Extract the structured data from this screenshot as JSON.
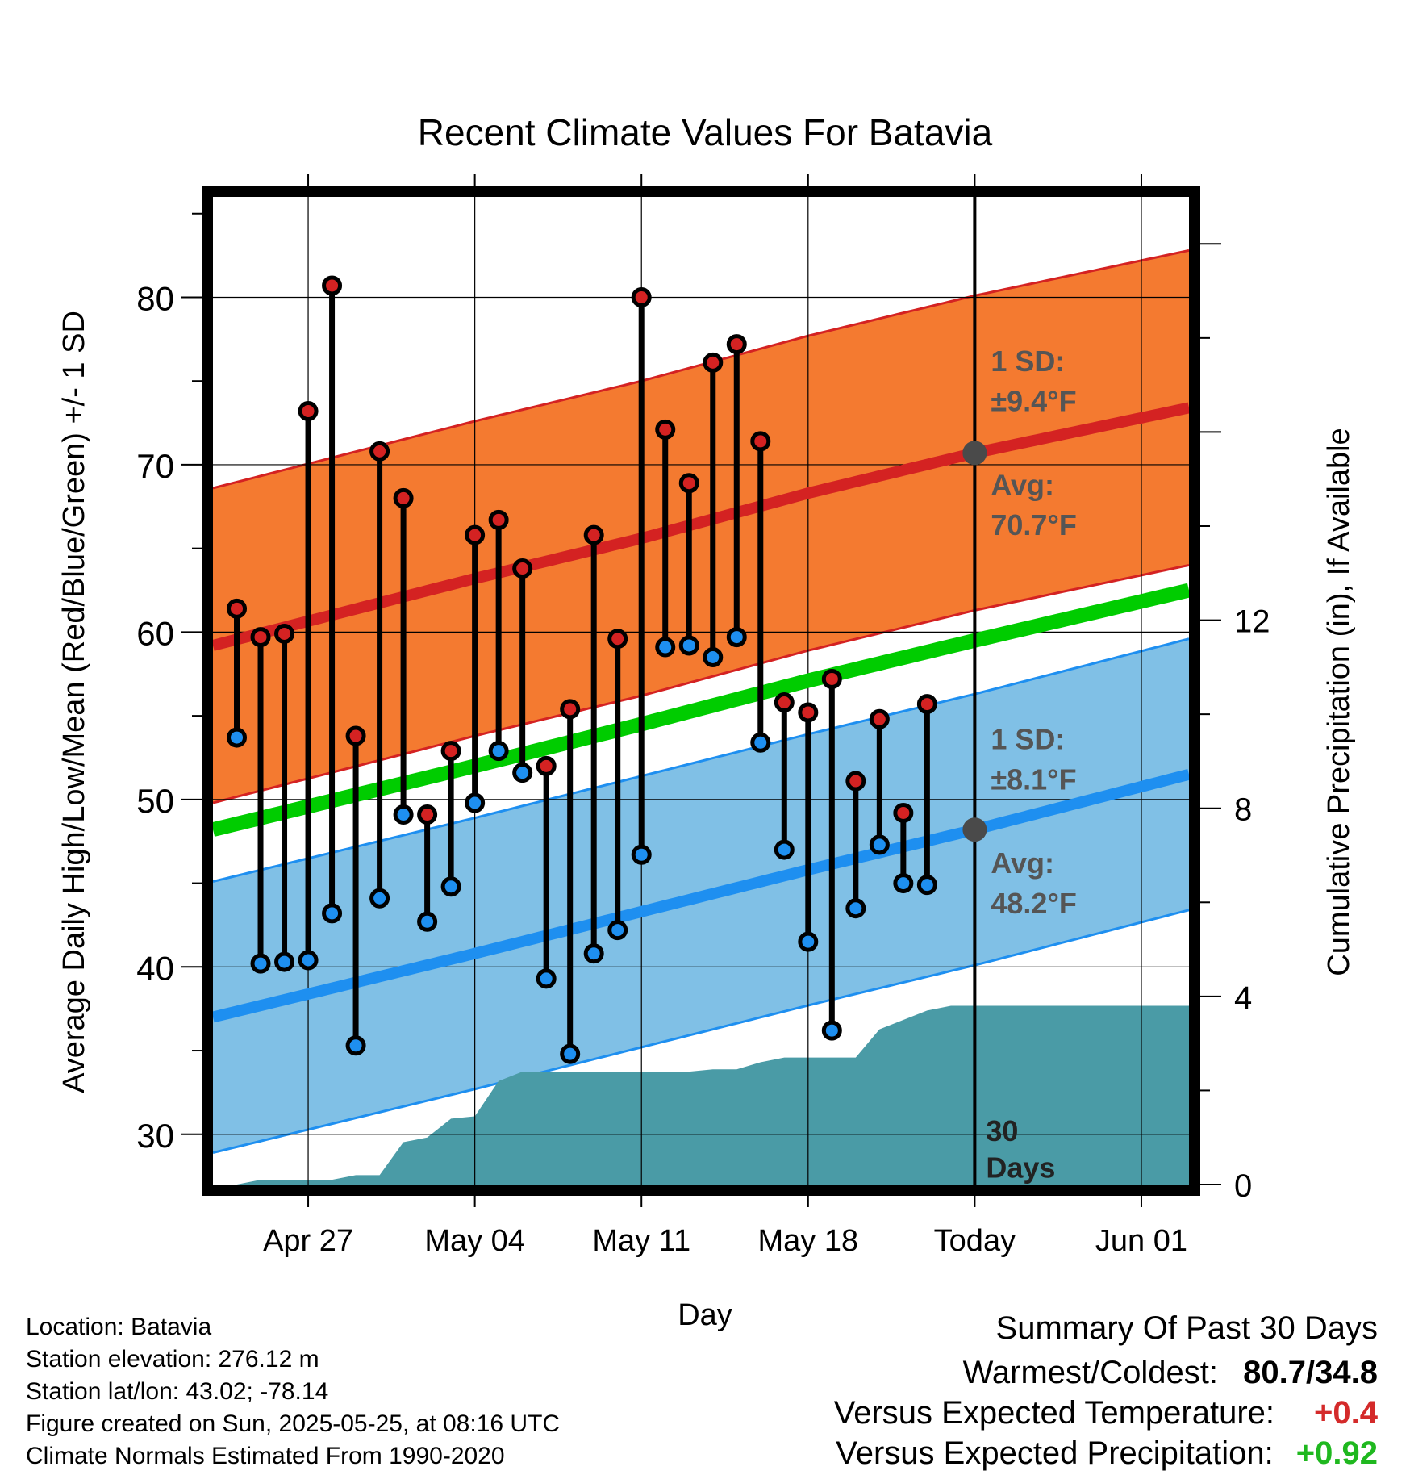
{
  "title": "Recent Climate Values For Batavia",
  "colors": {
    "high_band": "#f47a30",
    "high_band_edge": "#d42222",
    "high_mean": "#d42222",
    "low_band": "#80c0e6",
    "low_band_edge": "#1e8ff0",
    "low_mean": "#1e8ff0",
    "mean_line": "#00cc00",
    "precip": "#4a9ba6",
    "high_dot": "#d42222",
    "low_dot": "#1e8ff0",
    "avg_marker": "#4a4a4a",
    "summary_temp": "#d42a2a",
    "summary_precip": "#1fb81f"
  },
  "chart_data": {
    "type": "line",
    "title": "Recent Climate Values For Batavia",
    "xlabel": "Day",
    "ylabel": "Average Daily High/Low/Mean (Red/Blue/Green) +/- 1 SD",
    "y2label": "Cumulative Precipitation (in), If Available",
    "xlim": [
      "2025-04-23",
      "2025-06-03"
    ],
    "ylim": [
      27,
      86
    ],
    "y2lim": [
      0,
      21
    ],
    "x_ticks": [
      "Apr 27",
      "May 04",
      "May 11",
      "May 18",
      "Today",
      "Jun 01"
    ],
    "x_tick_dates": [
      "2025-04-27",
      "2025-05-04",
      "2025-05-11",
      "2025-05-18",
      "2025-05-25",
      "2025-06-01"
    ],
    "y_ticks": [
      30,
      40,
      50,
      60,
      70,
      80
    ],
    "y2_ticks": [
      0,
      4,
      8,
      12
    ],
    "grid": true,
    "today": "2025-05-25",
    "normal_high": {
      "x": [
        "2025-04-23",
        "2025-05-04",
        "2025-05-11",
        "2025-05-18",
        "2025-05-25",
        "2025-06-03"
      ],
      "mean": [
        59.2,
        63.2,
        65.6,
        68.3,
        70.7,
        73.4
      ],
      "sd": 9.4
    },
    "normal_low": {
      "x": [
        "2025-04-23",
        "2025-05-04",
        "2025-05-11",
        "2025-05-18",
        "2025-05-25",
        "2025-06-03"
      ],
      "mean": [
        37.0,
        40.8,
        43.3,
        45.8,
        48.2,
        51.5
      ],
      "sd": 8.1
    },
    "normal_mean": {
      "x": [
        "2025-04-23",
        "2025-05-04",
        "2025-05-11",
        "2025-05-18",
        "2025-05-25",
        "2025-06-03"
      ],
      "values": [
        48.2,
        52.0,
        54.5,
        57.1,
        59.5,
        62.5
      ]
    },
    "observed": {
      "dates": [
        "2025-04-24",
        "2025-04-25",
        "2025-04-26",
        "2025-04-27",
        "2025-04-28",
        "2025-04-29",
        "2025-04-30",
        "2025-05-01",
        "2025-05-02",
        "2025-05-03",
        "2025-05-04",
        "2025-05-05",
        "2025-05-06",
        "2025-05-07",
        "2025-05-08",
        "2025-05-09",
        "2025-05-10",
        "2025-05-11",
        "2025-05-12",
        "2025-05-13",
        "2025-05-14",
        "2025-05-15",
        "2025-05-16",
        "2025-05-17",
        "2025-05-18",
        "2025-05-19",
        "2025-05-20",
        "2025-05-21",
        "2025-05-22",
        "2025-05-23",
        "2025-05-24"
      ],
      "high": [
        61.4,
        59.7,
        59.9,
        73.2,
        80.7,
        53.8,
        70.8,
        68.0,
        49.1,
        52.9,
        65.8,
        66.7,
        63.8,
        52.0,
        55.4,
        65.8,
        59.6,
        80.0,
        72.1,
        68.9,
        76.1,
        77.2,
        71.4,
        55.8,
        55.2,
        57.2,
        51.1,
        54.8,
        49.2,
        55.7,
        null
      ],
      "low": [
        53.7,
        40.2,
        40.3,
        40.4,
        43.2,
        35.3,
        44.1,
        49.1,
        42.7,
        44.8,
        49.8,
        52.9,
        51.6,
        39.3,
        34.8,
        40.8,
        42.2,
        46.7,
        59.1,
        59.2,
        58.5,
        59.7,
        53.4,
        47.0,
        41.5,
        36.2,
        43.5,
        47.3,
        45.0,
        44.9,
        null
      ]
    },
    "precip_cumulative": {
      "dates": [
        "2025-04-23",
        "2025-04-24",
        "2025-04-25",
        "2025-04-26",
        "2025-04-27",
        "2025-04-28",
        "2025-04-29",
        "2025-04-30",
        "2025-05-01",
        "2025-05-02",
        "2025-05-03",
        "2025-05-04",
        "2025-05-05",
        "2025-05-06",
        "2025-05-07",
        "2025-05-08",
        "2025-05-09",
        "2025-05-10",
        "2025-05-11",
        "2025-05-12",
        "2025-05-13",
        "2025-05-14",
        "2025-05-15",
        "2025-05-16",
        "2025-05-17",
        "2025-05-18",
        "2025-05-19",
        "2025-05-20",
        "2025-05-21",
        "2025-05-22",
        "2025-05-23",
        "2025-05-24",
        "2025-05-25",
        "2025-06-03"
      ],
      "values": [
        0,
        0,
        0.1,
        0.1,
        0.1,
        0.1,
        0.2,
        0.2,
        0.9,
        1.0,
        1.4,
        1.45,
        2.2,
        2.4,
        2.4,
        2.4,
        2.4,
        2.4,
        2.4,
        2.4,
        2.4,
        2.45,
        2.45,
        2.6,
        2.7,
        2.7,
        2.7,
        2.7,
        3.3,
        3.5,
        3.7,
        3.8,
        3.8,
        3.8
      ]
    },
    "annotations": {
      "high_sd": "1 SD:",
      "high_sd_value": "±9.4°F",
      "high_avg": "Avg:",
      "high_avg_value": "70.7°F",
      "low_sd": "1 SD:",
      "low_sd_value": "±8.1°F",
      "low_avg": "Avg:",
      "low_avg_value": "48.2°F",
      "days_num": "30",
      "days_label": "Days"
    }
  },
  "station": {
    "location": "Location: Batavia",
    "elevation": "Station elevation: 276.12 m",
    "latlon": "Station lat/lon: 43.02; -78.14",
    "created": "Figure created on Sun, 2025-05-25, at 08:16 UTC",
    "normals": "Climate Normals Estimated From 1990-2020"
  },
  "summary": {
    "title": "Summary Of Past 30 Days",
    "warmest_label": "Warmest/Coldest:",
    "warmest_value": "80.7/34.8",
    "temp_label": "Versus Expected Temperature:",
    "temp_value": "+0.4",
    "precip_label": "Versus Expected Precipitation:",
    "precip_value": "+0.92"
  }
}
